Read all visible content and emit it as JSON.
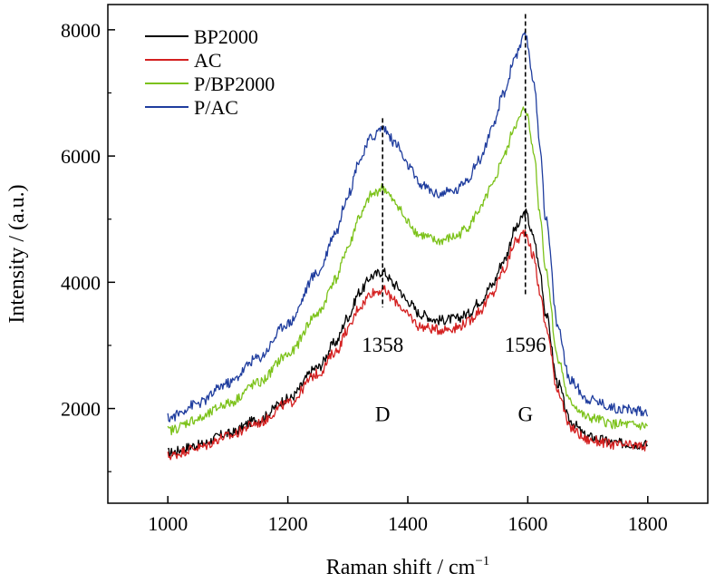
{
  "chart_data": {
    "type": "line",
    "title": "",
    "xlabel": "Raman shift / cm",
    "xlabel_superscript": "−1",
    "ylabel": "Intensity / (a.u.)",
    "xlim": [
      900,
      1900
    ],
    "ylim": [
      500,
      8400
    ],
    "x_ticks": [
      1000,
      1200,
      1400,
      1600,
      1800
    ],
    "y_ticks": [
      2000,
      4000,
      6000,
      8000
    ],
    "grid": false,
    "legend_position": "top-left",
    "series": [
      {
        "name": "BP2000",
        "color": "#000000",
        "x": [
          1000,
          1050,
          1100,
          1150,
          1200,
          1250,
          1280,
          1300,
          1320,
          1340,
          1358,
          1380,
          1400,
          1420,
          1450,
          1480,
          1500,
          1520,
          1540,
          1560,
          1580,
          1596,
          1610,
          1620,
          1630,
          1650,
          1670,
          1700,
          1750,
          1800
        ],
        "values": [
          1300,
          1420,
          1600,
          1820,
          2150,
          2650,
          3050,
          3450,
          3850,
          4100,
          4170,
          3950,
          3700,
          3500,
          3400,
          3420,
          3500,
          3700,
          3950,
          4350,
          4850,
          5100,
          4700,
          4200,
          3500,
          2400,
          1800,
          1550,
          1450,
          1430
        ]
      },
      {
        "name": "AC",
        "color": "#d42020",
        "x": [
          1000,
          1050,
          1100,
          1150,
          1200,
          1250,
          1280,
          1300,
          1320,
          1340,
          1358,
          1380,
          1400,
          1420,
          1450,
          1480,
          1500,
          1520,
          1540,
          1560,
          1580,
          1596,
          1610,
          1620,
          1630,
          1650,
          1670,
          1700,
          1750,
          1800
        ],
        "values": [
          1250,
          1380,
          1560,
          1770,
          2080,
          2550,
          2900,
          3250,
          3620,
          3840,
          3880,
          3700,
          3480,
          3300,
          3250,
          3280,
          3370,
          3550,
          3800,
          4200,
          4650,
          4800,
          4400,
          3850,
          3300,
          2300,
          1700,
          1500,
          1420,
          1400
        ]
      },
      {
        "name": "P/BP2000",
        "color": "#7cc21a",
        "x": [
          1000,
          1050,
          1100,
          1150,
          1200,
          1250,
          1280,
          1300,
          1320,
          1340,
          1358,
          1380,
          1400,
          1420,
          1450,
          1480,
          1500,
          1520,
          1540,
          1560,
          1580,
          1596,
          1610,
          1620,
          1630,
          1650,
          1670,
          1700,
          1750,
          1800
        ],
        "values": [
          1650,
          1830,
          2080,
          2400,
          2850,
          3500,
          4050,
          4550,
          5050,
          5380,
          5500,
          5250,
          4950,
          4750,
          4650,
          4720,
          4880,
          5150,
          5500,
          6000,
          6500,
          6750,
          6100,
          5100,
          4200,
          2800,
          2100,
          1850,
          1750,
          1720
        ]
      },
      {
        "name": "P/AC",
        "color": "#1f3d9e",
        "x": [
          1000,
          1050,
          1100,
          1150,
          1200,
          1250,
          1280,
          1300,
          1320,
          1340,
          1358,
          1380,
          1400,
          1420,
          1450,
          1480,
          1500,
          1520,
          1540,
          1560,
          1580,
          1596,
          1610,
          1620,
          1630,
          1650,
          1670,
          1700,
          1750,
          1800
        ],
        "values": [
          1850,
          2080,
          2400,
          2800,
          3350,
          4150,
          4800,
          5380,
          5950,
          6300,
          6450,
          6200,
          5850,
          5550,
          5400,
          5450,
          5650,
          5950,
          6400,
          7000,
          7600,
          7900,
          7200,
          6200,
          5000,
          3300,
          2450,
          2150,
          2000,
          1950
        ]
      }
    ],
    "annotations": [
      {
        "x": 1358,
        "label": "1358",
        "band": "D"
      },
      {
        "x": 1596,
        "label": "1596",
        "band": "G"
      }
    ]
  }
}
